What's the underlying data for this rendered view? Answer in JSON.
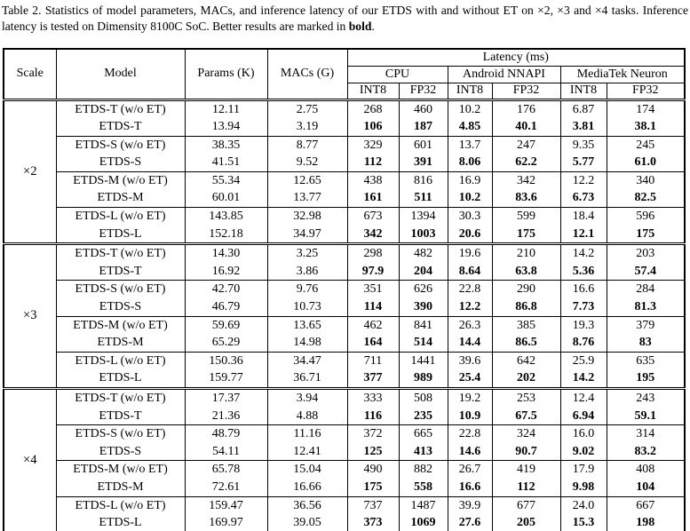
{
  "caption": {
    "text": "Table 2. Statistics of model parameters, MACs, and inference latency of our ETDS with and without ET on ×2, ×3 and ×4 tasks. Inference latency is tested on Dimensity 8100C SoC. Better results are marked in ",
    "bold_word": "bold",
    "suffix": "."
  },
  "table": {
    "headers": {
      "scale": "Scale",
      "model": "Model",
      "params": "Params (K)",
      "macs": "MACs (G)",
      "latency": "Latency (ms)",
      "groups": [
        "CPU",
        "Android NNAPI",
        "MediaTek Neuron"
      ],
      "subheaders": [
        "INT8",
        "FP32",
        "INT8",
        "FP32",
        "INT8",
        "FP32"
      ]
    },
    "sections": [
      {
        "scale": "×2",
        "rows": [
          {
            "model": "ETDS-T (w/o ET)",
            "params": "12.11",
            "macs": "2.75",
            "latency": [
              "268",
              "460",
              "10.2",
              "176",
              "6.87",
              "174"
            ],
            "bold": false
          },
          {
            "model": "ETDS-T",
            "params": "13.94",
            "macs": "3.19",
            "latency": [
              "106",
              "187",
              "4.85",
              "40.1",
              "3.81",
              "38.1"
            ],
            "bold": true
          },
          {
            "model": "ETDS-S (w/o ET)",
            "params": "38.35",
            "macs": "8.77",
            "latency": [
              "329",
              "601",
              "13.7",
              "247",
              "9.35",
              "245"
            ],
            "bold": false
          },
          {
            "model": "ETDS-S",
            "params": "41.51",
            "macs": "9.52",
            "latency": [
              "112",
              "391",
              "8.06",
              "62.2",
              "5.77",
              "61.0"
            ],
            "bold": true
          },
          {
            "model": "ETDS-M (w/o ET)",
            "params": "55.34",
            "macs": "12.65",
            "latency": [
              "438",
              "816",
              "16.9",
              "342",
              "12.2",
              "340"
            ],
            "bold": false
          },
          {
            "model": "ETDS-M",
            "params": "60.01",
            "macs": "13.77",
            "latency": [
              "161",
              "511",
              "10.2",
              "83.6",
              "6.73",
              "82.5"
            ],
            "bold": true
          },
          {
            "model": "ETDS-L (w/o ET)",
            "params": "143.85",
            "macs": "32.98",
            "latency": [
              "673",
              "1394",
              "30.3",
              "599",
              "18.4",
              "596"
            ],
            "bold": false
          },
          {
            "model": "ETDS-L",
            "params": "152.18",
            "macs": "34.97",
            "latency": [
              "342",
              "1003",
              "20.6",
              "175",
              "12.1",
              "175"
            ],
            "bold": true
          }
        ]
      },
      {
        "scale": "×3",
        "rows": [
          {
            "model": "ETDS-T (w/o ET)",
            "params": "14.30",
            "macs": "3.25",
            "latency": [
              "298",
              "482",
              "19.6",
              "210",
              "14.2",
              "203"
            ],
            "bold": false
          },
          {
            "model": "ETDS-T",
            "params": "16.92",
            "macs": "3.86",
            "latency": [
              "97.9",
              "204",
              "8.64",
              "63.8",
              "5.36",
              "57.4"
            ],
            "bold": true
          },
          {
            "model": "ETDS-S (w/o ET)",
            "params": "42.70",
            "macs": "9.76",
            "latency": [
              "351",
              "626",
              "22.8",
              "290",
              "16.6",
              "284"
            ],
            "bold": false
          },
          {
            "model": "ETDS-S",
            "params": "46.79",
            "macs": "10.73",
            "latency": [
              "114",
              "390",
              "12.2",
              "86.8",
              "7.73",
              "81.3"
            ],
            "bold": true
          },
          {
            "model": "ETDS-M (w/o ET)",
            "params": "59.69",
            "macs": "13.65",
            "latency": [
              "462",
              "841",
              "26.3",
              "385",
              "19.3",
              "379"
            ],
            "bold": false
          },
          {
            "model": "ETDS-M",
            "params": "65.29",
            "macs": "14.98",
            "latency": [
              "164",
              "514",
              "14.4",
              "86.5",
              "8.76",
              "83"
            ],
            "bold": true
          },
          {
            "model": "ETDS-L (w/o ET)",
            "params": "150.36",
            "macs": "34.47",
            "latency": [
              "711",
              "1441",
              "39.6",
              "642",
              "25.9",
              "635"
            ],
            "bold": false
          },
          {
            "model": "ETDS-L",
            "params": "159.77",
            "macs": "36.71",
            "latency": [
              "377",
              "989",
              "25.4",
              "202",
              "14.2",
              "195"
            ],
            "bold": true
          }
        ]
      },
      {
        "scale": "×4",
        "rows": [
          {
            "model": "ETDS-T (w/o ET)",
            "params": "17.37",
            "macs": "3.94",
            "latency": [
              "333",
              "508",
              "19.2",
              "253",
              "12.4",
              "243"
            ],
            "bold": false
          },
          {
            "model": "ETDS-T",
            "params": "21.36",
            "macs": "4.88",
            "latency": [
              "116",
              "235",
              "10.9",
              "67.5",
              "6.94",
              "59.1"
            ],
            "bold": true
          },
          {
            "model": "ETDS-S (w/o ET)",
            "params": "48.79",
            "macs": "11.16",
            "latency": [
              "372",
              "665",
              "22.8",
              "324",
              "16.0",
              "314"
            ],
            "bold": false
          },
          {
            "model": "ETDS-S",
            "params": "54.11",
            "macs": "12.41",
            "latency": [
              "125",
              "413",
              "14.6",
              "90.7",
              "9.02",
              "83.2"
            ],
            "bold": true
          },
          {
            "model": "ETDS-M (w/o ET)",
            "params": "65.78",
            "macs": "15.04",
            "latency": [
              "490",
              "882",
              "26.7",
              "419",
              "17.9",
              "408"
            ],
            "bold": false
          },
          {
            "model": "ETDS-M",
            "params": "72.61",
            "macs": "16.66",
            "latency": [
              "175",
              "558",
              "16.6",
              "112",
              "9.98",
              "104"
            ],
            "bold": true
          },
          {
            "model": "ETDS-L (w/o ET)",
            "params": "159.47",
            "macs": "36.56",
            "latency": [
              "737",
              "1487",
              "39.9",
              "677",
              "24.0",
              "667"
            ],
            "bold": false
          },
          {
            "model": "ETDS-L",
            "params": "169.97",
            "macs": "39.05",
            "latency": [
              "373",
              "1069",
              "27.6",
              "205",
              "15.3",
              "198"
            ],
            "bold": true
          }
        ]
      }
    ]
  }
}
